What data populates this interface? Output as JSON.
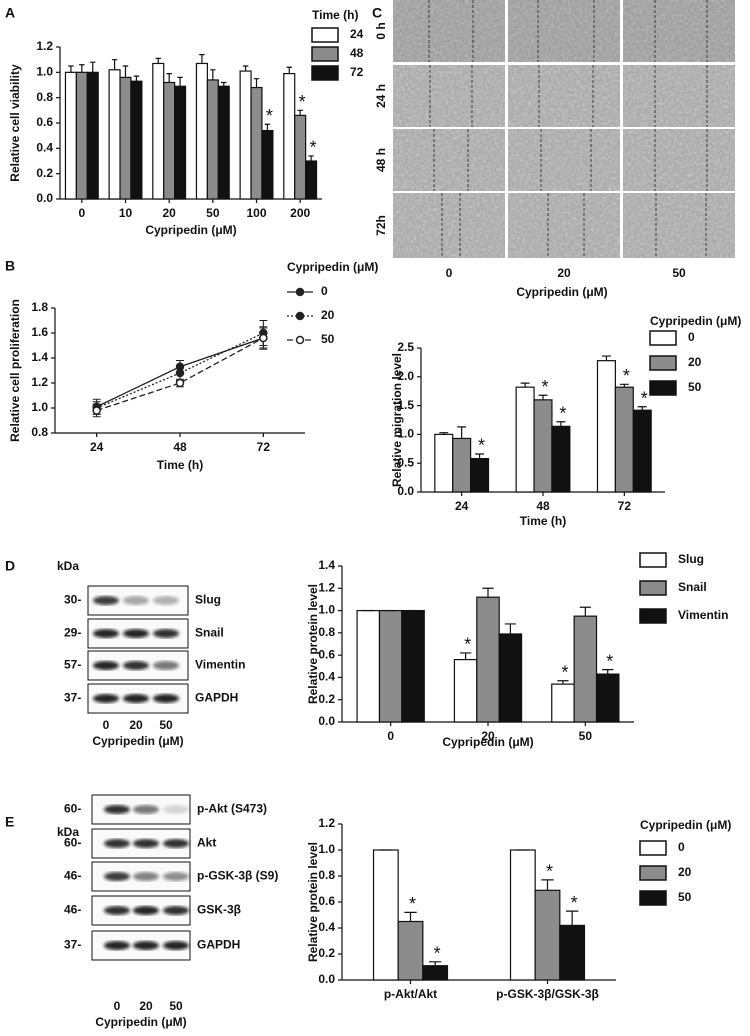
{
  "figure": {
    "panel_labels": [
      "A",
      "B",
      "C",
      "D",
      "E"
    ],
    "wound": {
      "rows": [
        "0 h",
        "24 h",
        "48 h",
        "72h"
      ],
      "columns": [
        "0",
        "20",
        "50"
      ],
      "xlabel": "Cypripedin (μM)"
    },
    "blot_d": {
      "unit": "kDa",
      "markers": [
        "30-",
        "29-",
        "57-",
        "37-"
      ],
      "proteins": [
        "Slug",
        "Snail",
        "Vimentin",
        "GAPDH"
      ],
      "lanes": [
        "0",
        "20",
        "50"
      ],
      "xlabel": "Cypripedin (μM)"
    },
    "blot_e": {
      "unit": "kDa",
      "markers": [
        "60-",
        "60-",
        "46-",
        "46-",
        "37-"
      ],
      "proteins": [
        "p-Akt (S473)",
        "Akt",
        "p-GSK-3β (S9)",
        "GSK-3β",
        "GAPDH"
      ],
      "lanes": [
        "0",
        "20",
        "50"
      ],
      "xlabel": "Cypripedin (μM)"
    }
  },
  "chart_data": [
    {
      "type": "bar",
      "xlabel": "Cypripedin (μM)",
      "ylabel": "Relative cell viability",
      "legend_title": "Time (h)",
      "legend": "right",
      "categories": [
        "0",
        "10",
        "20",
        "50",
        "100",
        "200"
      ],
      "series": [
        {
          "name": "24",
          "color": "#ffffff",
          "values": [
            1.0,
            1.02,
            1.07,
            1.07,
            1.01,
            0.99
          ],
          "errors": [
            0.05,
            0.08,
            0.04,
            0.07,
            0.04,
            0.05
          ],
          "significance": [
            null,
            null,
            null,
            null,
            null,
            null
          ]
        },
        {
          "name": "48",
          "color": "#8c8c8c",
          "values": [
            1.0,
            0.96,
            0.92,
            0.94,
            0.88,
            0.66
          ],
          "errors": [
            0.06,
            0.09,
            0.07,
            0.08,
            0.07,
            0.04
          ],
          "significance": [
            null,
            null,
            null,
            null,
            null,
            "*"
          ]
        },
        {
          "name": "72",
          "color": "#111111",
          "values": [
            1.0,
            0.93,
            0.89,
            0.89,
            0.54,
            0.3
          ],
          "errors": [
            0.08,
            0.04,
            0.07,
            0.03,
            0.05,
            0.04
          ],
          "significance": [
            null,
            null,
            null,
            null,
            "*",
            "*"
          ]
        }
      ],
      "ylim": [
        0,
        1.2
      ],
      "yticks": [
        {
          "value": 0,
          "label": "0.0"
        },
        0.2,
        0.4,
        0.6,
        0.8,
        {
          "value": 1,
          "label": "1.0"
        },
        1.2
      ]
    },
    {
      "type": "line",
      "xlabel": "Time (h)",
      "ylabel": "Relative cell proliferation",
      "legend_title": "Cypripedin (μM)",
      "legend": "right",
      "categories": [
        "24",
        "48",
        "72"
      ],
      "series": [
        {
          "name": "0",
          "color": "#222222",
          "line_style": "solid",
          "marker": "filled",
          "values": [
            1.01,
            1.33,
            1.56
          ],
          "errors": [
            0.06,
            0.05,
            0.08
          ]
        },
        {
          "name": "20",
          "color": "#222222",
          "line_style": "dotted",
          "marker": "filled",
          "values": [
            1.0,
            1.28,
            1.6
          ],
          "errors": [
            0.05,
            0.06,
            0.1
          ]
        },
        {
          "name": "50",
          "color": "#222222",
          "line_style": "dashed",
          "marker": "open",
          "values": [
            0.98,
            1.2,
            1.56
          ],
          "errors": [
            0.05,
            0.03,
            0.09
          ]
        }
      ],
      "ylim": [
        0.8,
        1.8
      ],
      "yticks": [
        0.8,
        {
          "value": 1,
          "label": "1.0"
        },
        1.2,
        1.4,
        1.6,
        1.8
      ]
    },
    {
      "type": "bar",
      "xlabel": "Time (h)",
      "ylabel": "Relative migration level",
      "legend_title": "Cypripedin (μM)",
      "legend": "right",
      "categories": [
        "24",
        "48",
        "72"
      ],
      "series": [
        {
          "name": "0",
          "color": "#ffffff",
          "values": [
            1.0,
            1.82,
            2.28
          ],
          "errors": [
            0.03,
            0.07,
            0.08
          ],
          "significance": [
            null,
            null,
            null
          ]
        },
        {
          "name": "20",
          "color": "#8c8c8c",
          "values": [
            0.93,
            1.6,
            1.82
          ],
          "errors": [
            0.2,
            0.08,
            0.05
          ],
          "significance": [
            null,
            "*",
            "*"
          ]
        },
        {
          "name": "50",
          "color": "#111111",
          "values": [
            0.58,
            1.14,
            1.42
          ],
          "errors": [
            0.08,
            0.08,
            0.06
          ],
          "significance": [
            "*",
            "*",
            "*"
          ]
        }
      ],
      "ylim": [
        0,
        2.5
      ],
      "yticks": [
        {
          "value": 0,
          "label": "0.0"
        },
        0.5,
        {
          "value": 1,
          "label": "1.0"
        },
        1.5,
        {
          "value": 2,
          "label": "2.0"
        },
        2.5
      ]
    },
    {
      "type": "bar",
      "xlabel": "Cypripedin (μM)",
      "ylabel": "Relative protein level",
      "legend": "right",
      "categories": [
        "0",
        "20",
        "50"
      ],
      "series": [
        {
          "name": "Slug",
          "color": "#ffffff",
          "values": [
            1.0,
            0.56,
            0.34
          ],
          "errors": [
            0,
            0.06,
            0.03
          ],
          "significance": [
            null,
            "*",
            "*"
          ]
        },
        {
          "name": "Snail",
          "color": "#8c8c8c",
          "values": [
            1.0,
            1.12,
            0.95
          ],
          "errors": [
            0,
            0.08,
            0.08
          ],
          "significance": [
            null,
            null,
            null
          ]
        },
        {
          "name": "Vimentin",
          "color": "#111111",
          "values": [
            1.0,
            0.79,
            0.43
          ],
          "errors": [
            0,
            0.09,
            0.04
          ],
          "significance": [
            null,
            null,
            "*"
          ]
        }
      ],
      "ylim": [
        0,
        1.4
      ],
      "yticks": [
        {
          "value": 0,
          "label": "0.0"
        },
        0.2,
        0.4,
        0.6,
        0.8,
        {
          "value": 1,
          "label": "1.0"
        },
        1.2,
        1.4
      ]
    },
    {
      "type": "bar",
      "ylabel": "Relative protein level",
      "legend_title": "Cypripedin (μM)",
      "legend": "right",
      "categories": [
        "p-Akt/Akt",
        "p-GSK-3β/GSK-3β"
      ],
      "series": [
        {
          "name": "0",
          "color": "#ffffff",
          "values": [
            1.0,
            1.0
          ],
          "errors": [
            0,
            0
          ],
          "significance": [
            null,
            null
          ]
        },
        {
          "name": "20",
          "color": "#8c8c8c",
          "values": [
            0.45,
            0.69
          ],
          "errors": [
            0.07,
            0.08
          ],
          "significance": [
            "*",
            "*"
          ]
        },
        {
          "name": "50",
          "color": "#111111",
          "values": [
            0.11,
            0.42
          ],
          "errors": [
            0.03,
            0.11
          ],
          "significance": [
            "*",
            "*"
          ]
        }
      ],
      "ylim": [
        0,
        1.2
      ],
      "yticks": [
        {
          "value": 0,
          "label": "0.0"
        },
        0.2,
        0.4,
        0.6,
        0.8,
        {
          "value": 1,
          "label": "1.0"
        },
        1.2
      ]
    }
  ]
}
